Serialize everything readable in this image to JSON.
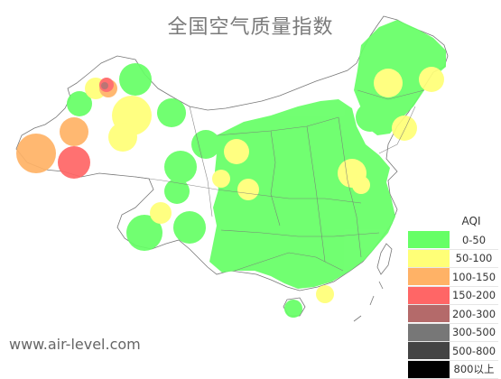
{
  "title": "全国空气质量指数",
  "watermark": "www.air-level.com",
  "legend": {
    "title": "AQI",
    "items": [
      {
        "label": "0-50",
        "color": "#66ff66"
      },
      {
        "label": "50-100",
        "color": "#ffff77"
      },
      {
        "label": "100-150",
        "color": "#ffb266"
      },
      {
        "label": "150-200",
        "color": "#ff6666"
      },
      {
        "label": "200-300",
        "color": "#b46a6a"
      },
      {
        "label": "300-500",
        "color": "#777777"
      },
      {
        "label": "500-800",
        "color": "#444444"
      },
      {
        "label": "800以上",
        "color": "#000000"
      }
    ]
  },
  "colors": {
    "good": "#66ff66",
    "moderate": "#ffff77",
    "sensitive": "#ffb266",
    "unhealthy": "#ff6666",
    "very_unhealthy": "#b46a6a",
    "border": "#777777"
  }
}
